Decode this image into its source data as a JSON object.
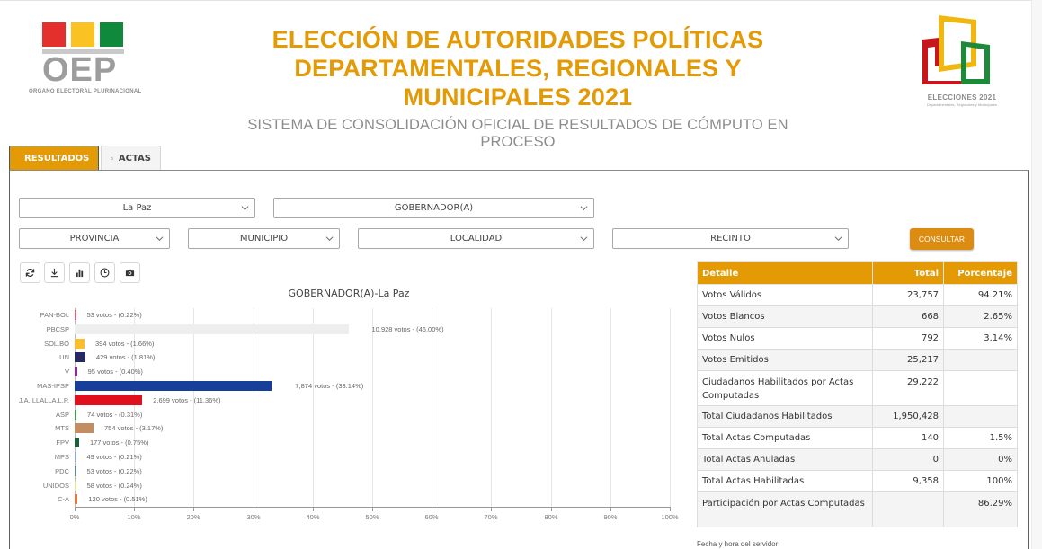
{
  "header": {
    "left_logo": {
      "text": "OEP",
      "subtitle": "ÓRGANO ELECTORAL PLURINACIONAL",
      "colors": [
        "#e3302c",
        "#fbc224",
        "#0f8a3c"
      ]
    },
    "title_lines": [
      "ELECCIÓN DE AUTORIDADES POLÍTICAS",
      "DEPARTAMENTALES, REGIONALES Y",
      "MUNICIPALES 2021"
    ],
    "subtitle": "SISTEMA DE CONSOLIDACIÓN OFICIAL DE RESULTADOS DE CÓMPUTO EN PROCESO",
    "right_logo": {
      "text": "ELECCIONES 2021",
      "subtitle": "Departamentales, Regionales y Municipales"
    }
  },
  "tabs": [
    {
      "label": "RESULTADOS",
      "icon": "chart-area-icon",
      "active": true
    },
    {
      "label": "ACTAS",
      "icon": "file-icon",
      "active": false
    }
  ],
  "filters": {
    "departamento": "La Paz",
    "cargo": "GOBERNADOR(A)",
    "provincia": "PROVINCIA",
    "municipio": "MUNICIPIO",
    "localidad": "LOCALIDAD",
    "recinto": "RECINTO",
    "consultar_label": "CONSULTAR"
  },
  "toolbar": [
    {
      "name": "refresh-button",
      "icon": "refresh-icon"
    },
    {
      "name": "download-button",
      "icon": "download-icon"
    },
    {
      "name": "chart-button",
      "icon": "bar-chart-icon"
    },
    {
      "name": "history-button",
      "icon": "clock-icon"
    },
    {
      "name": "screenshot-button",
      "icon": "camera-icon"
    }
  ],
  "chart_data": {
    "type": "bar",
    "orientation": "horizontal",
    "title": "GOBERNADOR(A)-La Paz",
    "xlabel": "",
    "ylabel": "",
    "xlim": [
      0,
      100
    ],
    "x_ticks": [
      "0%",
      "10%",
      "20%",
      "30%",
      "40%",
      "50%",
      "60%",
      "70%",
      "80%",
      "90%",
      "100%"
    ],
    "grid": true,
    "categories": [
      "PAN-BOL",
      "PBCSP",
      "SOL.BO",
      "UN",
      "V",
      "MAS-IPSP",
      "J.A. LLALLA.L.P.",
      "ASP",
      "MTS",
      "FPV",
      "MPS",
      "PDC",
      "UNIDOS",
      "C-A"
    ],
    "votes": [
      53,
      10928,
      394,
      429,
      95,
      7874,
      2699,
      74,
      754,
      177,
      49,
      53,
      58,
      120
    ],
    "values": [
      0.22,
      46.0,
      1.66,
      1.81,
      0.4,
      33.14,
      11.36,
      0.31,
      3.17,
      0.75,
      0.21,
      0.22,
      0.24,
      0.51
    ],
    "labels": [
      "53 votos - (0.22%)",
      "10,928 votos - (46.00%)",
      "394 votos - (1.66%)",
      "429 votos - (1.81%)",
      "95 votos - (0.40%)",
      "7,874 votos - (33.14%)",
      "2,699 votos - (11.36%)",
      "74 votos - (0.31%)",
      "754 votos - (3.17%)",
      "177 votos - (0.75%)",
      "49 votos - (0.21%)",
      "53 votos - (0.22%)",
      "58 votos - (0.24%)",
      "120 votos - (0.51%)"
    ],
    "colors": [
      "#d9647a",
      "#eeeeee",
      "#fbbf2d",
      "#262a61",
      "#8e2a9a",
      "#173f9a",
      "#e0101c",
      "#3f9a4a",
      "#c38d62",
      "#1b5e3a",
      "#8ea9d8",
      "#5d8a86",
      "#e8e29a",
      "#e8773d"
    ]
  },
  "stats_table": {
    "headers": [
      "Detalle",
      "Total",
      "Porcentaje"
    ],
    "rows": [
      {
        "label": "Votos Válidos",
        "total": "23,757",
        "pct": "94.21%"
      },
      {
        "label": "Votos Blancos",
        "total": "668",
        "pct": "2.65%"
      },
      {
        "label": "Votos Nulos",
        "total": "792",
        "pct": "3.14%"
      },
      {
        "label": "Votos Emitidos",
        "total": "25,217",
        "pct": ""
      },
      {
        "label": "Ciudadanos Habilitados por Actas Computadas",
        "total": "29,222",
        "pct": ""
      },
      {
        "label": "Total Ciudadanos Habilitados",
        "total": "1,950,428",
        "pct": ""
      },
      {
        "label": "Total Actas Computadas",
        "total": "140",
        "pct": "1.5%"
      },
      {
        "label": "Total Actas Anuladas",
        "total": "0",
        "pct": "0%"
      },
      {
        "label": "Total Actas Habilitadas",
        "total": "9,358",
        "pct": "100%"
      },
      {
        "label": "Participación por Actas Computadas",
        "total": "",
        "pct": "86.29%"
      }
    ]
  },
  "footer": {
    "server_time_label": "Fecha y hora del servidor:"
  },
  "colors": {
    "accent": "#e39a04",
    "button": "#dd8c12",
    "subtitle": "#8c8c8c"
  }
}
